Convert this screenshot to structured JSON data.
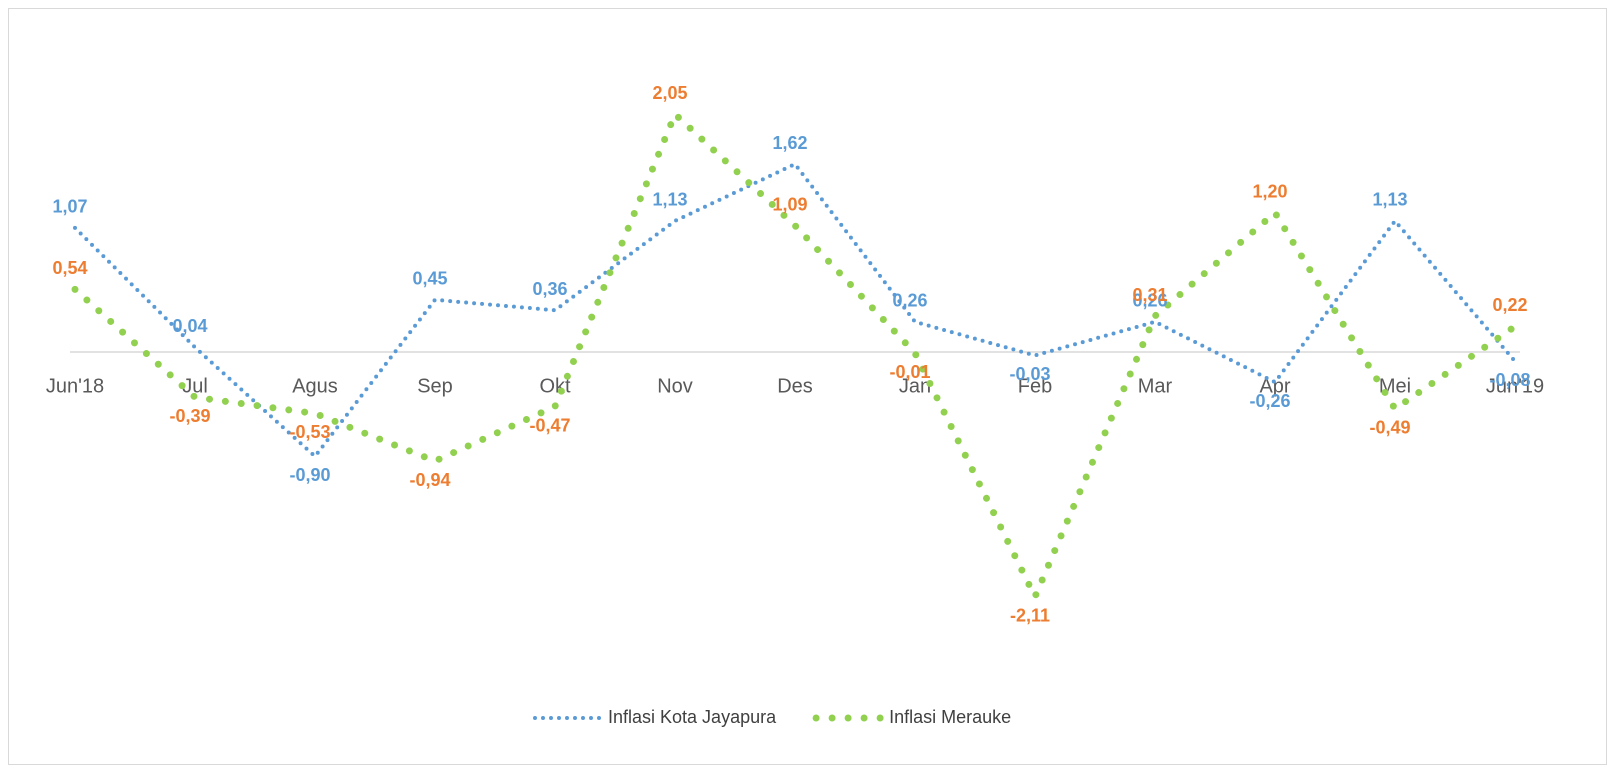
{
  "chart_data": {
    "type": "line",
    "categories": [
      "Jun'18",
      "Jul",
      "Agus",
      "Sep",
      "Okt",
      "Nov",
      "Des",
      "Jan",
      "Feb",
      "Mar",
      "Apr",
      "Mei",
      "Jun'19"
    ],
    "ylim": [
      -2.5,
      2.5
    ],
    "legend": "bottom",
    "series": [
      {
        "name": "Inflasi Kota Jayapura",
        "color": "#5b9bd5",
        "label_color": "#5b9bd5",
        "values": [
          1.07,
          0.04,
          -0.9,
          0.45,
          0.36,
          1.13,
          1.62,
          0.26,
          -0.03,
          0.26,
          -0.26,
          1.13,
          -0.08
        ],
        "value_labels": [
          "1,07",
          "0,04",
          "-0,90",
          "0,45",
          "0,36",
          "1,13",
          "1,62",
          "0,26",
          "-0,03",
          "0,26",
          "-0,26",
          "1,13",
          "-0,08"
        ]
      },
      {
        "name": "Inflasi Merauke",
        "color": "#92d050",
        "label_color": "#ed7d31",
        "values": [
          0.54,
          -0.39,
          -0.53,
          -0.94,
          -0.47,
          2.05,
          1.09,
          -0.01,
          -2.11,
          0.31,
          1.2,
          -0.49,
          0.22
        ],
        "value_labels": [
          "0,54",
          "-0,39",
          "-0,53",
          "-0,94",
          "-0,47",
          "2,05",
          "1,09",
          "-0,01",
          "-2,11",
          "0,31",
          "1,20",
          "-0,49",
          "0,22"
        ]
      }
    ]
  }
}
